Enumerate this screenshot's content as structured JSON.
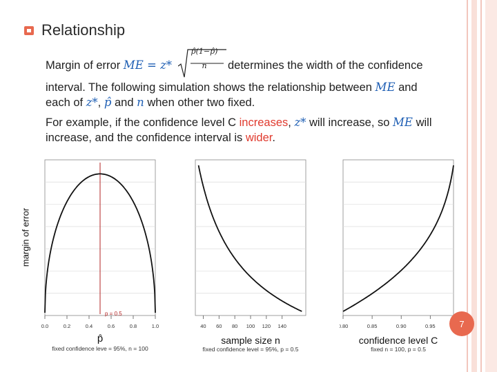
{
  "slide": {
    "title": "Relationship",
    "line1_pre": "Margin of error ",
    "me_symbol": "ME",
    "eq": " = z* ",
    "sqrt_num": "p̂(1−p̂)",
    "sqrt_den": "n",
    "line1_post": "determines the width of the confidence",
    "line2": "interval. The following simulation shows the relationship between ",
    "line2_me": "ME",
    "line2_post": " and",
    "line3_pre": "each of ",
    "line3_z": "z*",
    "line3_mid1": ", ",
    "line3_p": "p̂",
    "line3_mid2": " and ",
    "line3_n": "n",
    "line3_post": " when other two fixed.",
    "line4_pre": "For example, if the confidence level C ",
    "line4_red": "increases",
    "line4_mid": ", ",
    "line4_z": "z*",
    "line4_mid2": " will increase, so ",
    "line4_me": "ME",
    "line4_post": " will",
    "line5_pre": "increase, and the confidence interval is ",
    "line5_red": "wider",
    "line5_post": ".",
    "page_number": "7"
  },
  "accent_color": "#e8694f",
  "chart_data": [
    {
      "type": "line",
      "ylabel": "margin of error",
      "xlabel": "p̂",
      "caption": "fixed confidence leve = 95%, n = 100",
      "xlim": [
        0.0,
        1.0
      ],
      "x_ticks": [
        "0.0",
        "0.2",
        "0.4",
        "0.6",
        "0.8",
        "1.0"
      ],
      "marker": {
        "x": 0.5,
        "label": "p = 0.5"
      },
      "series": [
        {
          "name": "ME",
          "formula": "1.96*sqrt(p(1-p)/100)"
        }
      ]
    },
    {
      "type": "line",
      "xlabel": "sample size n",
      "caption": "fixed confidence level = 95%, p = 0.5",
      "xlim": [
        30,
        170
      ],
      "x_ticks": [
        "40",
        "60",
        "80",
        "100",
        "120",
        "140"
      ],
      "series": [
        {
          "name": "ME",
          "formula": "1.96*sqrt(0.25/n)"
        }
      ]
    },
    {
      "type": "line",
      "xlabel": "confidence level C",
      "caption": "fixed n = 100, p = 0.5",
      "xlim": [
        0.8,
        0.99
      ],
      "x_ticks": [
        "0.80",
        "0.85",
        "0.90",
        "0.95"
      ],
      "series": [
        {
          "name": "ME",
          "formula": "z(C)*sqrt(0.25/100)"
        }
      ]
    }
  ]
}
